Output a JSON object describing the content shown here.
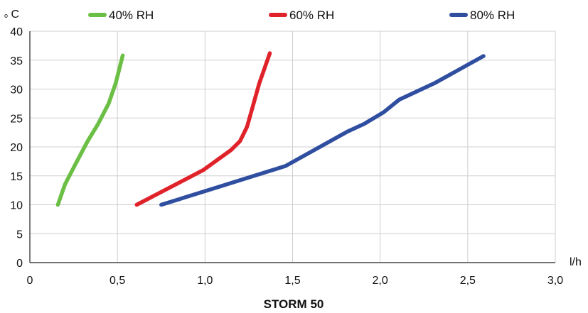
{
  "chart_data": {
    "type": "line",
    "title": "STORM 50",
    "ylabel_unit_prefix": "o",
    "ylabel_unit": "C",
    "xlabel": "l/h",
    "xlim": [
      0,
      3.0
    ],
    "ylim": [
      0,
      40
    ],
    "x_ticks": [
      "0",
      "0,5",
      "1,0",
      "1,5",
      "2,0",
      "2,5",
      "3,0"
    ],
    "y_ticks": [
      "0",
      "5",
      "10",
      "15",
      "20",
      "25",
      "30",
      "35",
      "40"
    ],
    "grid": true,
    "legend_position": "top",
    "series": [
      {
        "name": "40% RH",
        "color": "#6cbf45",
        "points": [
          [
            0.16,
            10.0
          ],
          [
            0.2,
            13.5
          ],
          [
            0.26,
            17.0
          ],
          [
            0.33,
            21.0
          ],
          [
            0.39,
            24.0
          ],
          [
            0.45,
            27.5
          ],
          [
            0.49,
            31.0
          ],
          [
            0.53,
            35.8
          ]
        ]
      },
      {
        "name": "60% RH",
        "color": "#e0232a",
        "points": [
          [
            0.61,
            10.0
          ],
          [
            0.8,
            13.0
          ],
          [
            0.99,
            16.0
          ],
          [
            1.15,
            19.5
          ],
          [
            1.2,
            21.0
          ],
          [
            1.24,
            23.5
          ],
          [
            1.31,
            31.0
          ],
          [
            1.37,
            36.2
          ]
        ]
      },
      {
        "name": "80% RH",
        "color": "#2f4ea0",
        "points": [
          [
            0.75,
            10.0
          ],
          [
            1.1,
            13.3
          ],
          [
            1.46,
            16.7
          ],
          [
            1.81,
            22.6
          ],
          [
            1.91,
            24.0
          ],
          [
            2.02,
            26.0
          ],
          [
            2.11,
            28.2
          ],
          [
            2.31,
            31.0
          ],
          [
            2.59,
            35.7
          ]
        ]
      }
    ]
  }
}
